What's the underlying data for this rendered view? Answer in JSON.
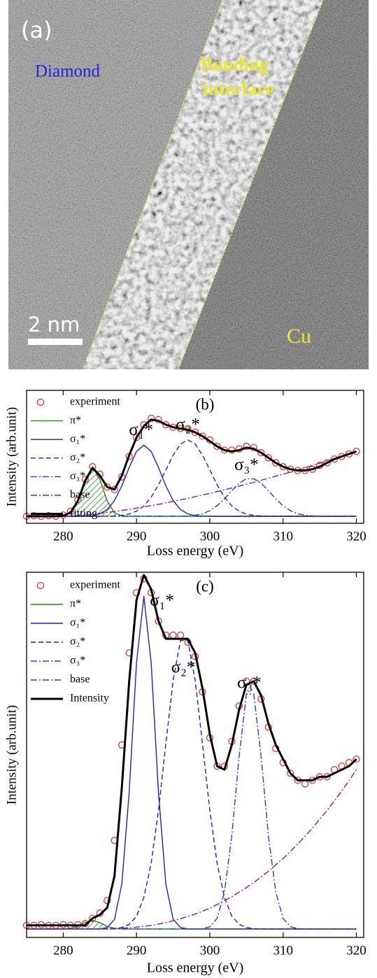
{
  "image_panel": {
    "label": "(a)",
    "diamond": "Diamond",
    "interface": [
      "Bonding",
      "interface"
    ],
    "scale_bar": "2 nm",
    "cu": "Cu"
  },
  "chart_data": [
    {
      "type": "line",
      "panel_label": "(b)",
      "x_label": "Loss energy (eV)",
      "y_label": "Intensity (arb.unit)",
      "xlim": [
        275,
        321
      ],
      "xticks": [
        280,
        290,
        300,
        310,
        320
      ],
      "ylim": [
        -0.055,
        0.99
      ],
      "legend": "upper left",
      "annotations": [
        "σ₁*",
        "σ₂*",
        "σ₃*"
      ],
      "x": [
        275,
        276,
        277,
        278,
        279,
        280,
        281,
        282,
        283,
        284,
        285,
        286,
        287,
        288,
        289,
        290,
        291,
        292,
        293,
        294,
        295,
        296,
        297,
        298,
        299,
        300,
        301,
        302,
        303,
        304,
        305,
        306,
        307,
        308,
        309,
        310,
        311,
        312,
        313,
        314,
        315,
        316,
        317,
        318,
        319,
        320
      ],
      "series": [
        {
          "name": "experiment",
          "color": "#e8231f",
          "style": "markers",
          "values": [
            0,
            0.005,
            0,
            0.005,
            0,
            0.01,
            0.04,
            0.13,
            0.29,
            0.39,
            0.33,
            0.23,
            0.21,
            0.31,
            0.47,
            0.62,
            0.72,
            0.77,
            0.76,
            0.72,
            0.7,
            0.69,
            0.69,
            0.66,
            0.63,
            0.6,
            0.55,
            0.52,
            0.52,
            0.53,
            0.55,
            0.54,
            0.5,
            0.46,
            0.42,
            0.39,
            0.37,
            0.36,
            0.36,
            0.37,
            0.4,
            0.42,
            0.45,
            0.47,
            0.49,
            0.51
          ]
        },
        {
          "name": "π*",
          "color": "#1a8c1a",
          "style": "solid",
          "fill": "hatch",
          "values": [
            0,
            0,
            0,
            0,
            0,
            0.004,
            0.027,
            0.12,
            0.29,
            0.39,
            0.29,
            0.12,
            0.027,
            0.004,
            0,
            0,
            0,
            0,
            0,
            0,
            0,
            0,
            0,
            0,
            0,
            0,
            0,
            0,
            0,
            0,
            0,
            0,
            0,
            0,
            0,
            0,
            0,
            0,
            0,
            0,
            0,
            0,
            0,
            0,
            0,
            0
          ]
        },
        {
          "name": "σ₁*",
          "color": "#1f1fd0",
          "style": "solid",
          "values": [
            0,
            0,
            0,
            0,
            0,
            0,
            0,
            0,
            0.001,
            0.005,
            0.019,
            0.053,
            0.123,
            0.239,
            0.384,
            0.51,
            0.56,
            0.51,
            0.384,
            0.239,
            0.123,
            0.053,
            0.019,
            0.005,
            0.001,
            0,
            0,
            0,
            0,
            0,
            0,
            0,
            0,
            0,
            0,
            0,
            0,
            0,
            0,
            0,
            0,
            0,
            0,
            0,
            0,
            0
          ]
        },
        {
          "name": "σ₂*",
          "color": "#1f1fd0",
          "style": "dashed",
          "values": [
            0,
            0,
            0,
            0,
            0,
            0,
            0,
            0,
            0,
            0,
            0,
            0.001,
            0.002,
            0.007,
            0.017,
            0.04,
            0.081,
            0.15,
            0.247,
            0.364,
            0.48,
            0.568,
            0.6,
            0.568,
            0.48,
            0.364,
            0.247,
            0.15,
            0.081,
            0.04,
            0.017,
            0.007,
            0.002,
            0.001,
            0,
            0,
            0,
            0,
            0,
            0,
            0,
            0,
            0,
            0,
            0,
            0
          ]
        },
        {
          "name": "σ₃*",
          "color": "#2040d8",
          "style": "dashdot",
          "values": [
            0,
            0,
            0,
            0,
            0,
            0,
            0,
            0,
            0,
            0,
            0,
            0,
            0,
            0,
            0,
            0,
            0,
            0,
            0,
            0,
            0,
            0.001,
            0.003,
            0.008,
            0.02,
            0.044,
            0.083,
            0.137,
            0.201,
            0.26,
            0.295,
            0.295,
            0.26,
            0.201,
            0.137,
            0.083,
            0.044,
            0.02,
            0.008,
            0.003,
            0.001,
            0,
            0,
            0,
            0,
            0
          ]
        },
        {
          "name": "base",
          "color": "#8b1a8b",
          "style": "dashdot",
          "values": [
            0,
            0,
            0,
            0,
            0,
            0,
            0.002,
            0.006,
            0.01,
            0.016,
            0.023,
            0.03,
            0.037,
            0.046,
            0.054,
            0.064,
            0.074,
            0.084,
            0.094,
            0.106,
            0.117,
            0.129,
            0.141,
            0.154,
            0.167,
            0.18,
            0.194,
            0.208,
            0.222,
            0.237,
            0.252,
            0.267,
            0.283,
            0.299,
            0.315,
            0.331,
            0.348,
            0.365,
            0.382,
            0.4,
            0.417,
            0.435,
            0.454,
            0.472,
            0.491,
            0.51
          ]
        },
        {
          "name": "fitting",
          "color": "#000000",
          "style": "solid",
          "linewidth": 3,
          "values": [
            0,
            0,
            0,
            0,
            0,
            0.005,
            0.03,
            0.12,
            0.28,
            0.38,
            0.32,
            0.23,
            0.21,
            0.32,
            0.48,
            0.62,
            0.71,
            0.76,
            0.75,
            0.72,
            0.7,
            0.69,
            0.68,
            0.66,
            0.63,
            0.59,
            0.55,
            0.52,
            0.51,
            0.52,
            0.54,
            0.53,
            0.5,
            0.46,
            0.42,
            0.39,
            0.37,
            0.36,
            0.36,
            0.37,
            0.39,
            0.42,
            0.45,
            0.47,
            0.49,
            0.51
          ]
        }
      ]
    },
    {
      "type": "line",
      "panel_label": "(c)",
      "x_label": "Loss energy (eV)",
      "y_label": "Intensity (arb.unit)",
      "xlim": [
        275,
        321
      ],
      "xticks": [
        280,
        290,
        300,
        310,
        320
      ],
      "ylim": [
        -0.024,
        1.008
      ],
      "legend": "upper left",
      "annotations": [
        "σ₁*",
        "σ₂*",
        "σ₃*"
      ],
      "x": [
        275,
        276,
        277,
        278,
        279,
        280,
        281,
        282,
        283,
        284,
        285,
        286,
        287,
        288,
        289,
        290,
        291,
        292,
        293,
        294,
        295,
        296,
        297,
        298,
        299,
        300,
        301,
        302,
        303,
        304,
        305,
        306,
        307,
        308,
        309,
        310,
        311,
        312,
        313,
        314,
        315,
        316,
        317,
        318,
        319,
        320
      ],
      "series": [
        {
          "name": "experiment",
          "color": "#e8231f",
          "style": "markers",
          "values": [
            0.01,
            0.01,
            0.012,
            0.01,
            0.01,
            0.012,
            0.01,
            0.012,
            0.015,
            0.03,
            0.045,
            0.08,
            0.25,
            0.52,
            0.78,
            0.95,
            0.99,
            0.95,
            0.87,
            0.83,
            0.83,
            0.83,
            0.81,
            0.77,
            0.67,
            0.54,
            0.46,
            0.46,
            0.53,
            0.63,
            0.7,
            0.7,
            0.65,
            0.57,
            0.51,
            0.47,
            0.44,
            0.42,
            0.41,
            0.42,
            0.43,
            0.43,
            0.45,
            0.46,
            0.47,
            0.48
          ]
        },
        {
          "name": "π*",
          "color": "#1a8c1a",
          "style": "solid",
          "fill": "hatch",
          "values": [
            0,
            0,
            0,
            0,
            0,
            0,
            0.002,
            0.007,
            0.018,
            0.024,
            0.018,
            0.007,
            0.002,
            0,
            0,
            0,
            0,
            0,
            0,
            0,
            0,
            0,
            0,
            0,
            0,
            0,
            0,
            0,
            0,
            0,
            0,
            0,
            0,
            0,
            0,
            0,
            0,
            0,
            0,
            0,
            0,
            0,
            0,
            0,
            0,
            0
          ]
        },
        {
          "name": "σ₁*",
          "color": "#1f1fd0",
          "style": "solid",
          "values": [
            0,
            0,
            0,
            0,
            0,
            0,
            0,
            0,
            0,
            0,
            0,
            0.004,
            0.027,
            0.127,
            0.386,
            0.753,
            0.94,
            0.753,
            0.386,
            0.127,
            0.027,
            0.004,
            0,
            0,
            0,
            0,
            0,
            0,
            0,
            0,
            0,
            0,
            0,
            0,
            0,
            0,
            0,
            0,
            0,
            0,
            0,
            0,
            0,
            0,
            0,
            0
          ]
        },
        {
          "name": "σ₂*",
          "color": "#1f1fd0",
          "style": "dashed",
          "values": [
            0,
            0,
            0,
            0,
            0,
            0,
            0,
            0,
            0,
            0,
            0,
            0,
            0.001,
            0.004,
            0.013,
            0.036,
            0.089,
            0.186,
            0.335,
            0.523,
            0.703,
            0.815,
            0.815,
            0.703,
            0.523,
            0.335,
            0.186,
            0.089,
            0.036,
            0.013,
            0.004,
            0.001,
            0,
            0,
            0,
            0,
            0,
            0,
            0,
            0,
            0,
            0,
            0,
            0,
            0,
            0
          ]
        },
        {
          "name": "σ₃*",
          "color": "#2040d8",
          "style": "dashdot",
          "values": [
            0,
            0,
            0,
            0,
            0,
            0,
            0,
            0,
            0,
            0,
            0,
            0,
            0,
            0,
            0,
            0,
            0,
            0,
            0,
            0,
            0,
            0,
            0,
            0,
            0.001,
            0.006,
            0.03,
            0.104,
            0.263,
            0.488,
            0.664,
            0.664,
            0.488,
            0.263,
            0.104,
            0.03,
            0.006,
            0.001,
            0,
            0,
            0,
            0,
            0,
            0,
            0,
            0
          ]
        },
        {
          "name": "base",
          "color": "#8b1a8b",
          "style": "dashdot",
          "values": [
            0,
            0,
            0,
            0,
            0,
            0,
            0,
            0,
            0,
            0,
            0,
            0,
            0.001,
            0.002,
            0.003,
            0.005,
            0.007,
            0.01,
            0.014,
            0.018,
            0.023,
            0.029,
            0.035,
            0.042,
            0.05,
            0.059,
            0.069,
            0.08,
            0.091,
            0.104,
            0.117,
            0.131,
            0.147,
            0.163,
            0.181,
            0.199,
            0.219,
            0.24,
            0.262,
            0.285,
            0.31,
            0.335,
            0.362,
            0.39,
            0.419,
            0.45
          ]
        },
        {
          "name": "Intensity",
          "color": "#000000",
          "style": "solid",
          "linewidth": 3,
          "values": [
            0.01,
            0.01,
            0.01,
            0.01,
            0.01,
            0.01,
            0.01,
            0.01,
            0.01,
            0.03,
            0.04,
            0.06,
            0.15,
            0.4,
            0.7,
            0.93,
            1.0,
            0.96,
            0.87,
            0.82,
            0.82,
            0.82,
            0.82,
            0.78,
            0.68,
            0.55,
            0.46,
            0.45,
            0.52,
            0.62,
            0.69,
            0.7,
            0.66,
            0.58,
            0.52,
            0.48,
            0.44,
            0.42,
            0.42,
            0.42,
            0.43,
            0.43,
            0.44,
            0.45,
            0.46,
            0.48
          ]
        }
      ]
    }
  ]
}
